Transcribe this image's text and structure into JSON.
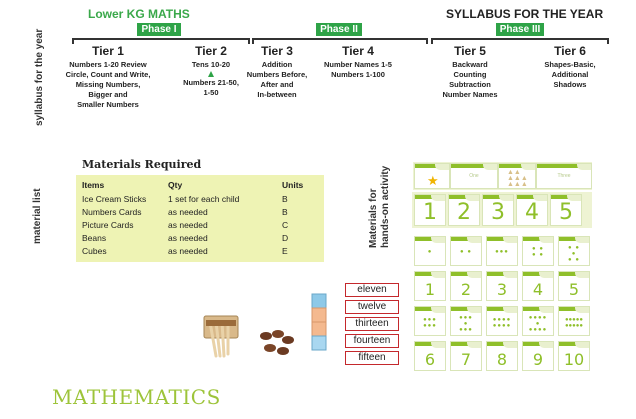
{
  "header": {
    "left_title": "Lower KG MATHS",
    "right_title": "SYLLABUS FOR THE YEAR",
    "side_label": "syllabus for the year"
  },
  "phases": [
    {
      "label": "Phase I"
    },
    {
      "label": "Phase II"
    },
    {
      "label": "Phase III"
    }
  ],
  "tiers": [
    {
      "name": "Tier 1",
      "lines": [
        "Numbers 1-20 Review",
        "Circle, Count and Write,",
        "Missing Numbers,",
        "Bigger and",
        "Smaller Numbers"
      ]
    },
    {
      "name": "Tier 2",
      "lines": [
        "Tens 10-20",
        "Numbers 21-50,",
        "1-50"
      ]
    },
    {
      "name": "Tier 3",
      "lines": [
        "Addition",
        "Numbers Before,",
        "After and",
        "In-between"
      ]
    },
    {
      "name": "Tier 4",
      "lines": [
        "Number Names 1-5",
        "Numbers 1-100"
      ]
    },
    {
      "name": "Tier 5",
      "lines": [
        "Backward",
        "Counting",
        "Subtraction",
        "Number Names"
      ]
    },
    {
      "name": "Tier 6",
      "lines": [
        "Shapes-Basic,",
        "Additional",
        "Shadows"
      ]
    }
  ],
  "materials": {
    "side_label": "material list",
    "title": "Materials Required",
    "headers": [
      "Items",
      "Qty",
      "Units"
    ],
    "rows": [
      [
        "Ice Cream Sticks",
        "1 set for each child",
        "B"
      ],
      [
        "Numbers Cards",
        "as needed",
        "B"
      ],
      [
        "Picture Cards",
        "as needed",
        "C"
      ],
      [
        "Beans",
        "as needed",
        "D"
      ],
      [
        "Cubes",
        "as needed",
        "E"
      ]
    ]
  },
  "hands_on": {
    "side_label_1": "Materials for",
    "side_label_2": "hands-on activity"
  },
  "number_words": [
    "eleven",
    "twelve",
    "thirteen",
    "fourteen",
    "fifteen"
  ],
  "cards": {
    "row1_words": [
      "",
      "One",
      "",
      "",
      "Three"
    ],
    "row2": [
      "1",
      "2",
      "3",
      "4",
      "5"
    ],
    "row4": [
      "1",
      "2",
      "3",
      "4",
      "5"
    ],
    "row6": [
      "6",
      "7",
      "8",
      "9",
      "10"
    ]
  },
  "footer": {
    "subject": "MATHEMATICS"
  },
  "colors": {
    "accent_green": "#2ea347",
    "title_green": "#3aa84a",
    "card_green": "#8fbf2a",
    "table_bg": "#eef3b4",
    "word_border": "#c4282c",
    "subject_green": "#9dc43a"
  }
}
